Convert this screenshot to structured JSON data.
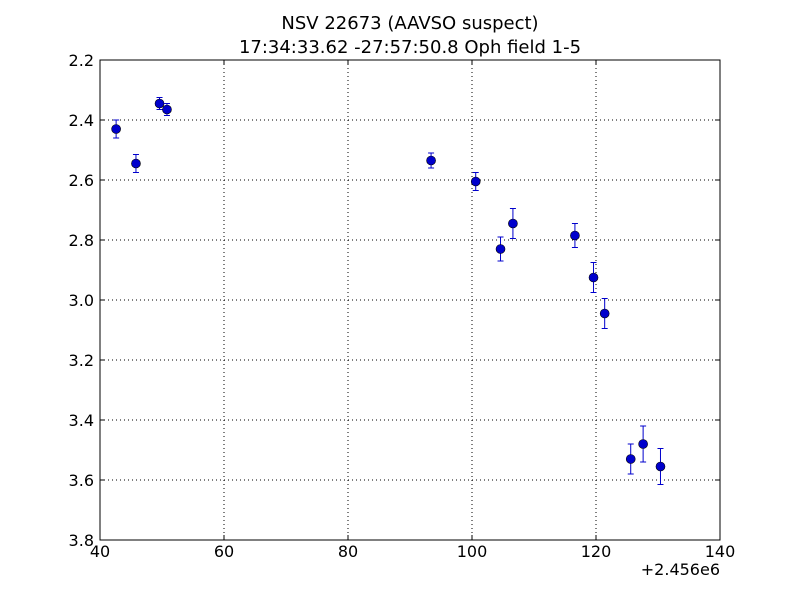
{
  "chart_data": {
    "type": "scatter",
    "title_lines": [
      "NSV 22673 (AAVSO suspect)",
      "17:34:33.62 -27:57:50.8 Oph field 1-5"
    ],
    "xlabel": "",
    "ylabel": "",
    "x_offset_label": "+2.456e6",
    "xlim": [
      40,
      140
    ],
    "ylim": [
      2.2,
      3.8
    ],
    "y_inverted": true,
    "x_ticks": [
      40,
      60,
      80,
      100,
      120,
      140
    ],
    "y_ticks": [
      2.2,
      2.4,
      2.6,
      2.8,
      3.0,
      3.2,
      3.4,
      3.6,
      3.8
    ],
    "x_tick_labels": [
      "40",
      "60",
      "80",
      "100",
      "120",
      "140"
    ],
    "y_tick_labels": [
      "2.2",
      "2.4",
      "2.6",
      "2.8",
      "3.0",
      "3.2",
      "3.4",
      "3.6",
      "3.8"
    ],
    "grid": true,
    "marker_color": "#0000cc",
    "points": [
      {
        "x": 42.6,
        "y": 2.43,
        "err": 0.03
      },
      {
        "x": 45.8,
        "y": 2.545,
        "err": 0.03
      },
      {
        "x": 49.6,
        "y": 2.345,
        "err": 0.02
      },
      {
        "x": 50.8,
        "y": 2.365,
        "err": 0.02
      },
      {
        "x": 93.4,
        "y": 2.535,
        "err": 0.025
      },
      {
        "x": 100.6,
        "y": 2.605,
        "err": 0.03
      },
      {
        "x": 104.6,
        "y": 2.83,
        "err": 0.04
      },
      {
        "x": 106.6,
        "y": 2.745,
        "err": 0.05
      },
      {
        "x": 116.6,
        "y": 2.785,
        "err": 0.04
      },
      {
        "x": 119.6,
        "y": 2.925,
        "err": 0.05
      },
      {
        "x": 121.4,
        "y": 3.045,
        "err": 0.05
      },
      {
        "x": 125.6,
        "y": 3.53,
        "err": 0.05
      },
      {
        "x": 127.6,
        "y": 3.48,
        "err": 0.06
      },
      {
        "x": 130.4,
        "y": 3.555,
        "err": 0.06
      }
    ]
  }
}
